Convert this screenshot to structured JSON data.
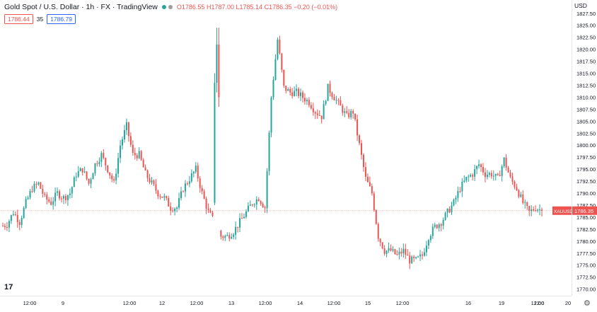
{
  "header": {
    "title": "Gold Spot / U.S. Dollar · 1h · FX · TradingView",
    "ohlc": {
      "open": "O1786.55",
      "high": "H1787.00",
      "low": "L1785.14",
      "close": "C1786.35",
      "change": "−0.20 (−0.01%)"
    },
    "bid": "1786.44",
    "spread": "35",
    "ask": "1786.79"
  },
  "price_axis": {
    "currency": "USD",
    "ticks": [
      "1827.50",
      "1825.00",
      "1822.50",
      "1820.00",
      "1817.50",
      "1815.00",
      "1812.50",
      "1810.00",
      "1807.50",
      "1805.00",
      "1802.50",
      "1800.00",
      "1797.50",
      "1795.00",
      "1792.50",
      "1790.00",
      "1787.50",
      "1785.00",
      "1782.50",
      "1780.00",
      "1777.50",
      "1775.00",
      "1772.50",
      "1770.00"
    ],
    "last_price_symbol": "XAUUSD",
    "last_price_value": "1786.35"
  },
  "time_axis": {
    "ticks": [
      "12:00",
      "9",
      "12:00",
      "12",
      "12:00",
      "13",
      "12:00",
      "14",
      "12:00",
      "15",
      "12:00",
      "16",
      "19",
      "12:00",
      "20",
      "12:0"
    ]
  },
  "colors": {
    "up": "#26a69a",
    "down": "#ef5350",
    "last_price_line": "#ef5350"
  },
  "chart_data": {
    "type": "candlestick",
    "symbol": "XAUUSD",
    "interval": "1h",
    "ylim": [
      1769.5,
      1828.5
    ],
    "close_path": [
      1783.5,
      1786,
      1784,
      1788,
      1791,
      1792,
      1789,
      1788,
      1790,
      1789,
      1790,
      1794,
      1795,
      1792,
      1796,
      1798,
      1795,
      1792,
      1800,
      1804,
      1798,
      1798,
      1794,
      1792,
      1790,
      1789,
      1787,
      1787,
      1791,
      1793,
      1795,
      1790,
      1786,
      1784,
      1781,
      1781,
      1782,
      1784,
      1786,
      1788,
      1789,
      1787,
      1810,
      1822,
      1812,
      1811,
      1811,
      1810,
      1809,
      1807,
      1806,
      1812,
      1810,
      1808,
      1806,
      1807,
      1800,
      1793,
      1790,
      1781,
      1778,
      1778,
      1777,
      1778,
      1776,
      1776,
      1777,
      1781,
      1783,
      1784,
      1786,
      1788,
      1791,
      1793,
      1794,
      1796,
      1794,
      1794,
      1793,
      1797,
      1793,
      1791,
      1788,
      1786,
      1787,
      1786.35
    ],
    "last_price": 1786.35
  }
}
